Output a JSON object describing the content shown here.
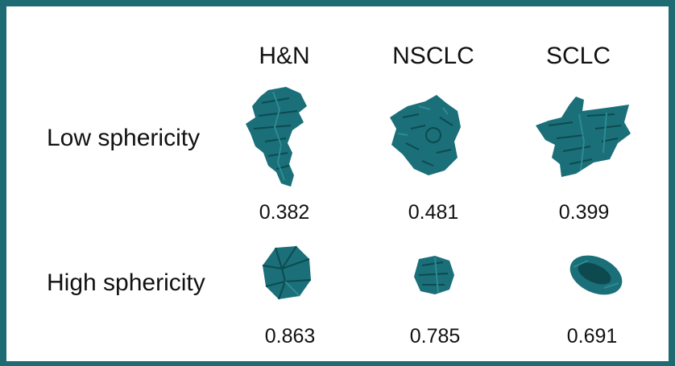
{
  "columns": [
    "H&N",
    "NSCLC",
    "SCLC"
  ],
  "rows": [
    {
      "label": "Low sphericity",
      "values": [
        "0.382",
        "0.481",
        "0.399"
      ]
    },
    {
      "label": "High sphericity",
      "values": [
        "0.863",
        "0.785",
        "0.691"
      ]
    }
  ],
  "colors": {
    "border": "#1f6b73",
    "tumor_fill": "#1a6f78",
    "tumor_dark": "#0d4a50",
    "tumor_light": "#2e8a93"
  }
}
